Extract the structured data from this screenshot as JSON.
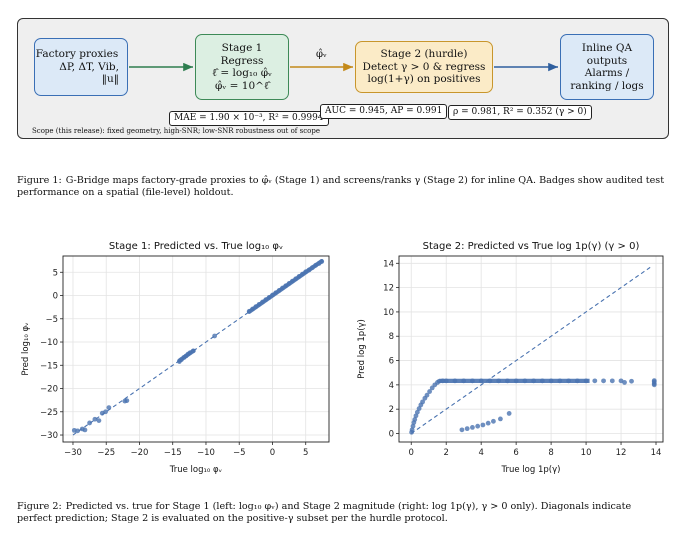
{
  "figure1": {
    "boxes": {
      "proxies": [
        "Factory proxies",
        "ΔP, ΔT, Vib,",
        "‖u‖"
      ],
      "stage1": [
        "Stage 1",
        "Regress",
        "ℓ̂ = log₁₀ φ̂ᵥ",
        "φ̂ᵥ = 10^ℓ̂"
      ],
      "stage2": [
        "Stage 2 (hurdle)",
        "Detect γ > 0 & regress",
        "log(1+γ) on positives"
      ],
      "inline": [
        "Inline QA",
        "outputs",
        "Alarms /",
        "ranking / logs"
      ]
    },
    "arrow_label": "φ̂ᵥ",
    "badges": {
      "mae": "MAE = 1.90 × 10⁻³, R² = 0.9994",
      "auc": "AUC = 0.945, AP = 0.991",
      "rho": "ρ = 0.981, R² = 0.352 (γ > 0)"
    },
    "scope_note": "Scope (this release): fixed geometry, high-SNR; low-SNR robustness out of scope",
    "colors": {
      "green_arrow": "#2e7d4f",
      "orange_arrow": "#c48a1a",
      "blue_arrow": "#2f5f9e"
    },
    "caption_label": "Figure 1:",
    "caption_text": "G-Bridge maps factory-grade proxies to φ̂ᵥ (Stage 1) and screens/ranks γ (Stage 2) for inline QA. Badges show audited test performance on a spatial (file-level) holdout."
  },
  "figure2": {
    "caption_label": "Figure 2:",
    "caption_text": "Predicted vs. true for Stage 1 (left: log₁₀ φᵥ) and Stage 2 magnitude (right: log 1p(γ), γ > 0 only). Diagonals indicate perfect prediction; Stage 2 is evaluated on the positive-γ subset per the hurdle protocol."
  },
  "chart_data": [
    {
      "type": "scatter",
      "title": "Stage 1: Predicted vs. True log₁₀ φᵥ",
      "xlabel": "True log₁₀ φᵥ",
      "ylabel": "Pred log₁₀ φᵥ",
      "xlim": [
        -31.5,
        8.5
      ],
      "ylim": [
        -31.5,
        8.5
      ],
      "xticks": [
        -30,
        -25,
        -20,
        -15,
        -10,
        -5,
        0,
        5
      ],
      "yticks": [
        -30,
        -25,
        -20,
        -15,
        -10,
        -5,
        0,
        5
      ],
      "grid": true,
      "diagonal": [
        [
          -30,
          -30
        ],
        [
          7.5,
          7.5
        ]
      ],
      "color": "#4a73b0",
      "points": [
        [
          -29.8,
          -29.0
        ],
        [
          -29.3,
          -29.1
        ],
        [
          -28.6,
          -28.7
        ],
        [
          -28.2,
          -28.9
        ],
        [
          -27.5,
          -27.4
        ],
        [
          -26.7,
          -26.6
        ],
        [
          -26.1,
          -26.9
        ],
        [
          -25.6,
          -25.3
        ],
        [
          -25.1,
          -25.0
        ],
        [
          -24.6,
          -24.1
        ],
        [
          -22.2,
          -22.7
        ],
        [
          -21.9,
          -22.6
        ],
        [
          -14.0,
          -14.2
        ],
        [
          -13.7,
          -13.8
        ],
        [
          -13.3,
          -13.3
        ],
        [
          -13.0,
          -13.0
        ],
        [
          -12.7,
          -12.6
        ],
        [
          -12.4,
          -12.3
        ],
        [
          -11.9,
          -11.9
        ],
        [
          -8.7,
          -8.7
        ],
        [
          -3.5,
          -3.4
        ],
        [
          -3.0,
          -2.9
        ],
        [
          -2.5,
          -2.4
        ],
        [
          -2.0,
          -1.9
        ],
        [
          -1.5,
          -1.4
        ],
        [
          -1.0,
          -0.9
        ],
        [
          -0.5,
          -0.4
        ],
        [
          0.0,
          0.1
        ],
        [
          0.5,
          0.6
        ],
        [
          1.0,
          1.1
        ],
        [
          1.5,
          1.6
        ],
        [
          2.0,
          2.1
        ],
        [
          2.5,
          2.6
        ],
        [
          3.0,
          3.1
        ],
        [
          3.5,
          3.6
        ],
        [
          4.0,
          4.1
        ],
        [
          4.5,
          4.6
        ],
        [
          5.0,
          5.1
        ],
        [
          5.5,
          5.5
        ],
        [
          6.0,
          6.0
        ],
        [
          6.5,
          6.5
        ],
        [
          7.0,
          6.9
        ],
        [
          7.4,
          7.3
        ]
      ]
    },
    {
      "type": "scatter",
      "title": "Stage 2: Predicted vs True log 1p(γ) (γ > 0)",
      "xlabel": "True log 1p(γ)",
      "ylabel": "Pred log 1p(γ)",
      "xlim": [
        -0.7,
        14.4
      ],
      "ylim": [
        -0.7,
        14.6
      ],
      "xticks": [
        0,
        2,
        4,
        6,
        8,
        10,
        12,
        14
      ],
      "yticks": [
        0,
        2,
        4,
        6,
        8,
        10,
        12,
        14
      ],
      "grid": true,
      "diagonal": [
        [
          0,
          0
        ],
        [
          13.8,
          13.8
        ]
      ],
      "color": "#4a73b0",
      "points": [
        [
          0.02,
          0.1
        ],
        [
          0.05,
          0.3
        ],
        [
          0.1,
          0.6
        ],
        [
          0.15,
          0.9
        ],
        [
          0.2,
          1.15
        ],
        [
          0.27,
          1.45
        ],
        [
          0.35,
          1.75
        ],
        [
          0.45,
          2.05
        ],
        [
          0.55,
          2.35
        ],
        [
          0.65,
          2.6
        ],
        [
          0.78,
          2.9
        ],
        [
          0.9,
          3.15
        ],
        [
          1.05,
          3.45
        ],
        [
          1.2,
          3.75
        ],
        [
          1.35,
          4.0
        ],
        [
          1.5,
          4.2
        ],
        [
          1.6,
          4.3
        ],
        [
          1.8,
          4.33
        ],
        [
          2.0,
          4.33
        ],
        [
          2.5,
          4.33
        ],
        [
          3.0,
          4.33
        ],
        [
          3.5,
          4.33
        ],
        [
          4.0,
          4.33
        ],
        [
          4.5,
          4.33
        ],
        [
          5.0,
          4.33
        ],
        [
          5.5,
          4.33
        ],
        [
          6.0,
          4.33
        ],
        [
          6.5,
          4.33
        ],
        [
          7.0,
          4.33
        ],
        [
          7.5,
          4.33
        ],
        [
          8.0,
          4.33
        ],
        [
          8.5,
          4.33
        ],
        [
          9.0,
          4.33
        ],
        [
          9.5,
          4.33
        ],
        [
          10.0,
          4.33
        ],
        [
          10.5,
          4.33
        ],
        [
          11.0,
          4.33
        ],
        [
          11.5,
          4.33
        ],
        [
          12.0,
          4.33
        ],
        [
          12.2,
          4.2
        ],
        [
          12.6,
          4.3
        ],
        [
          13.9,
          4.35
        ],
        [
          13.9,
          4.1
        ],
        [
          13.9,
          4.0
        ],
        [
          13.9,
          4.25
        ],
        [
          2.9,
          0.3
        ],
        [
          3.2,
          0.4
        ],
        [
          3.5,
          0.5
        ],
        [
          3.8,
          0.6
        ],
        [
          4.1,
          0.7
        ],
        [
          4.4,
          0.85
        ],
        [
          4.7,
          1.0
        ],
        [
          5.1,
          1.2
        ],
        [
          5.6,
          1.65
        ]
      ]
    }
  ]
}
